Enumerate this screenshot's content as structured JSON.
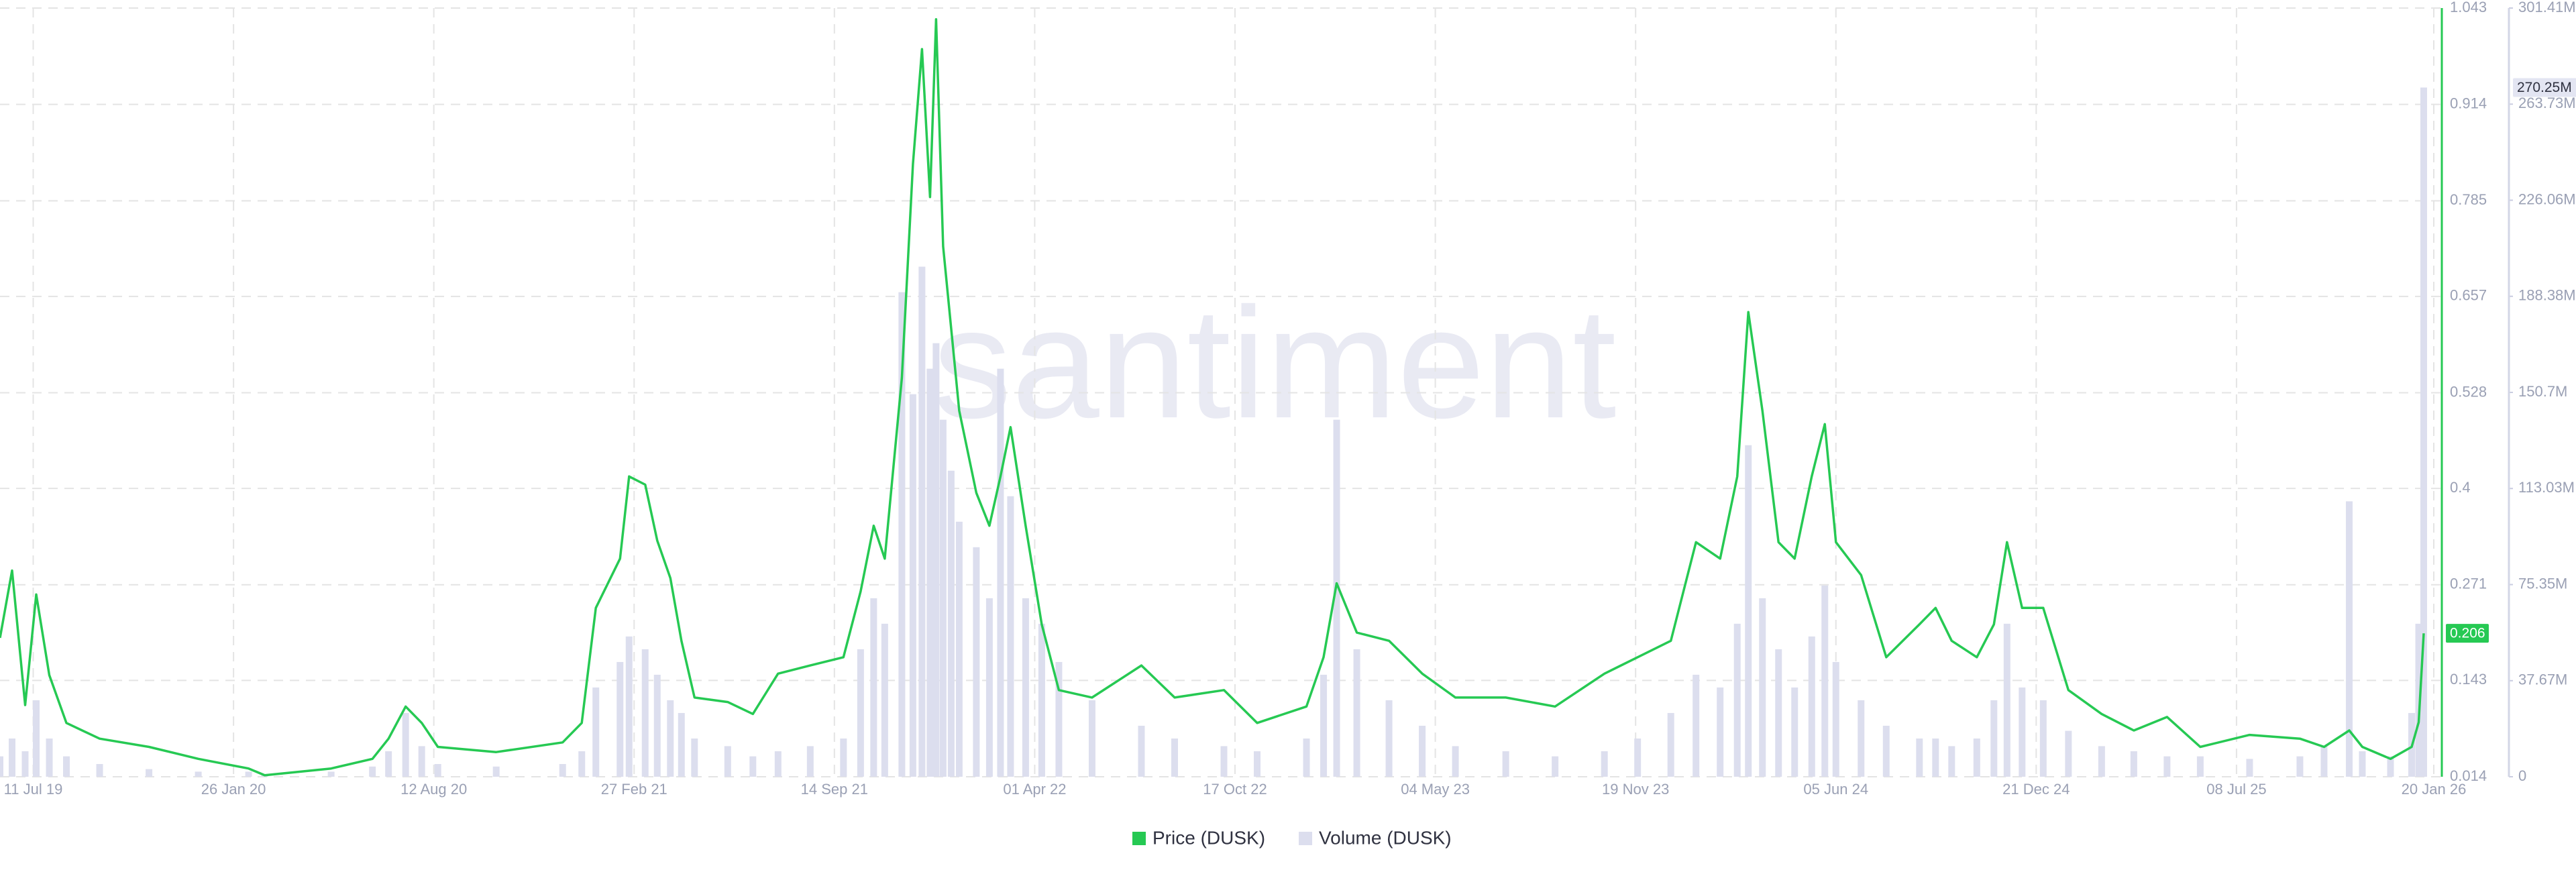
{
  "chart_data": {
    "type": "line",
    "watermark": "santiment",
    "x": [
      "2019-06-08",
      "2019-06-20",
      "2019-07-03",
      "2019-07-14",
      "2019-07-27",
      "2019-08-13",
      "2019-09-15",
      "2019-11-03",
      "2019-12-22",
      "2020-02-10",
      "2020-02-26",
      "2020-05-02",
      "2020-06-12",
      "2020-06-28",
      "2020-07-15",
      "2020-07-31",
      "2020-08-16",
      "2020-10-13",
      "2020-12-18",
      "2021-01-06",
      "2021-01-20",
      "2021-02-13",
      "2021-02-22",
      "2021-03-10",
      "2021-03-22",
      "2021-04-04",
      "2021-04-15",
      "2021-04-28",
      "2021-05-31",
      "2021-06-25",
      "2021-07-20",
      "2021-08-21",
      "2021-09-23",
      "2021-10-10",
      "2021-10-23",
      "2021-11-03",
      "2021-11-20",
      "2021-12-01",
      "2021-12-10",
      "2021-12-18",
      "2021-12-24",
      "2021-12-31",
      "2022-01-08",
      "2022-01-16",
      "2022-02-02",
      "2022-02-15",
      "2022-02-26",
      "2022-03-08",
      "2022-03-23",
      "2022-04-08",
      "2022-04-25",
      "2022-05-28",
      "2022-07-16",
      "2022-08-18",
      "2022-10-06",
      "2022-11-08",
      "2022-12-27",
      "2023-01-13",
      "2023-01-26",
      "2023-02-15",
      "2023-03-19",
      "2023-04-21",
      "2023-05-24",
      "2023-07-13",
      "2023-08-31",
      "2023-10-19",
      "2023-11-21",
      "2023-12-24",
      "2024-01-18",
      "2024-02-11",
      "2024-02-28",
      "2024-03-10",
      "2024-03-24",
      "2024-04-09",
      "2024-04-25",
      "2024-05-12",
      "2024-05-25",
      "2024-06-05",
      "2024-06-30",
      "2024-07-25",
      "2024-08-27",
      "2024-09-12",
      "2024-09-28",
      "2024-10-23",
      "2024-11-09",
      "2024-11-22",
      "2024-12-07",
      "2024-12-28",
      "2025-01-22",
      "2025-02-24",
      "2025-03-28",
      "2025-04-30",
      "2025-06-02",
      "2025-07-21",
      "2025-09-09",
      "2025-10-03",
      "2025-10-28",
      "2025-11-10",
      "2025-12-08",
      "2025-12-29",
      "2026-01-05",
      "2026-01-10"
    ],
    "series": [
      {
        "name": "Price (DUSK)",
        "color": "#26c953",
        "axis": "y",
        "type": "line",
        "values": [
          0.2,
          0.29,
          0.11,
          0.258,
          0.15,
          0.086,
          0.065,
          0.054,
          0.038,
          0.025,
          0.016,
          0.025,
          0.038,
          0.065,
          0.108,
          0.086,
          0.054,
          0.047,
          0.06,
          0.086,
          0.24,
          0.306,
          0.416,
          0.405,
          0.33,
          0.28,
          0.196,
          0.12,
          0.114,
          0.098,
          0.152,
          0.163,
          0.174,
          0.262,
          0.35,
          0.306,
          0.548,
          0.834,
          0.988,
          0.79,
          1.028,
          0.724,
          0.614,
          0.504,
          0.394,
          0.35,
          0.416,
          0.482,
          0.35,
          0.218,
          0.13,
          0.12,
          0.163,
          0.12,
          0.13,
          0.086,
          0.108,
          0.174,
          0.273,
          0.207,
          0.196,
          0.152,
          0.12,
          0.12,
          0.108,
          0.152,
          0.174,
          0.196,
          0.328,
          0.306,
          0.416,
          0.636,
          0.504,
          0.328,
          0.306,
          0.416,
          0.486,
          0.328,
          0.284,
          0.174,
          0.218,
          0.24,
          0.196,
          0.174,
          0.218,
          0.328,
          0.24,
          0.24,
          0.13,
          0.098,
          0.076,
          0.094,
          0.054,
          0.07,
          0.065,
          0.054,
          0.076,
          0.054,
          0.038,
          0.054,
          0.087,
          0.206
        ]
      },
      {
        "name": "Volume (DUSK)",
        "color": "#dcdeee",
        "axis": "y2",
        "type": "bar",
        "values": [
          8000000,
          15000000,
          10000000,
          30000000,
          15000000,
          8000000,
          5000000,
          3000000,
          2000000,
          2000000,
          1000000,
          2000000,
          4000000,
          10000000,
          25000000,
          12000000,
          5000000,
          4000000,
          5000000,
          10000000,
          35000000,
          45000000,
          55000000,
          50000000,
          40000000,
          30000000,
          25000000,
          15000000,
          12000000,
          8000000,
          10000000,
          12000000,
          15000000,
          50000000,
          70000000,
          60000000,
          190000000,
          150000000,
          200000000,
          160000000,
          170000000,
          140000000,
          120000000,
          100000000,
          90000000,
          70000000,
          160000000,
          110000000,
          70000000,
          60000000,
          45000000,
          30000000,
          20000000,
          15000000,
          12000000,
          10000000,
          15000000,
          40000000,
          140000000,
          50000000,
          30000000,
          20000000,
          12000000,
          10000000,
          8000000,
          10000000,
          15000000,
          25000000,
          40000000,
          35000000,
          60000000,
          130000000,
          70000000,
          50000000,
          35000000,
          55000000,
          75000000,
          45000000,
          30000000,
          20000000,
          15000000,
          15000000,
          12000000,
          15000000,
          30000000,
          60000000,
          35000000,
          30000000,
          18000000,
          12000000,
          10000000,
          8000000,
          8000000,
          7000000,
          8000000,
          12000000,
          108000000,
          10000000,
          8000000,
          25000000,
          60000000,
          270250000
        ]
      }
    ],
    "xlim": [
      "2019-06-08",
      "2026-01-28"
    ],
    "xticks": [
      {
        "value": "2019-07-11",
        "label": "11 Jul 19"
      },
      {
        "value": "2020-01-26",
        "label": "26 Jan 20"
      },
      {
        "value": "2020-08-12",
        "label": "12 Aug 20"
      },
      {
        "value": "2021-02-27",
        "label": "27 Feb 21"
      },
      {
        "value": "2021-09-14",
        "label": "14 Sep 21"
      },
      {
        "value": "2022-04-01",
        "label": "01 Apr 22"
      },
      {
        "value": "2022-10-17",
        "label": "17 Oct 22"
      },
      {
        "value": "2023-05-04",
        "label": "04 May 23"
      },
      {
        "value": "2023-11-19",
        "label": "19 Nov 23"
      },
      {
        "value": "2024-06-05",
        "label": "05 Jun 24"
      },
      {
        "value": "2024-12-21",
        "label": "21 Dec 24"
      },
      {
        "value": "2025-07-08",
        "label": "08 Jul 25"
      },
      {
        "value": "2026-01-20",
        "label": "20 Jan 26"
      }
    ],
    "ylim": [
      0.014,
      1.043
    ],
    "yticks": [
      0.014,
      0.143,
      0.271,
      0.4,
      0.528,
      0.657,
      0.785,
      0.914,
      1.043
    ],
    "y2lim": [
      0,
      301410000
    ],
    "y2ticks": [
      0,
      {
        "value": 37670000,
        "label": "37.67M"
      },
      {
        "value": 75350000,
        "label": "75.35M"
      },
      {
        "value": 113030000,
        "label": "113.03M"
      },
      {
        "value": 150700000,
        "label": "150.7M"
      },
      {
        "value": 188380000,
        "label": "188.38M"
      },
      {
        "value": 226060000,
        "label": "226.06M"
      },
      {
        "value": 263730000,
        "label": "263.73M"
      },
      {
        "value": 301410000,
        "label": "301.41M"
      }
    ],
    "annotations": [
      {
        "text": "0.206",
        "value": 0.206,
        "axis": "y",
        "color": "#26c953"
      },
      {
        "text": "270.25M",
        "value": 270250000,
        "axis": "y2",
        "color": "#e3e5f2"
      }
    ],
    "grid": true,
    "legend": "bottom"
  }
}
